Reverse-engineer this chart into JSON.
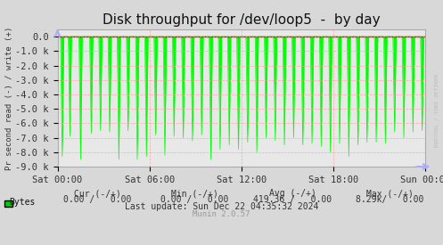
{
  "title": "Disk throughput for /dev/loop5  -  by day",
  "ylabel": "Pr second read (-) / write (+)",
  "background_color": "#d8d8d8",
  "plot_bg_color": "#e8e8e8",
  "grid_color": "#ff9999",
  "ylim": [
    -9000,
    500
  ],
  "yticks": [
    0,
    -1000,
    -2000,
    -3000,
    -4000,
    -5000,
    -6000,
    -7000,
    -8000,
    -9000
  ],
  "ytick_labels": [
    "0.0",
    "-1.0 k",
    "-2.0 k",
    "-3.0 k",
    "-4.0 k",
    "-5.0 k",
    "-6.0 k",
    "-7.0 k",
    "-8.0 k",
    "-9.0 k"
  ],
  "line_color": "#00ff00",
  "zero_line_color": "#cc0000",
  "border_color": "#aaaaaa",
  "xtick_labels": [
    "Sat 00:00",
    "Sat 06:00",
    "Sat 12:00",
    "Sat 18:00",
    "Sun 00:00"
  ],
  "legend_label": "Bytes",
  "legend_color": "#00cc00",
  "footer_cur": "Cur (-/+)   0.00 /   0.00",
  "footer_min": "Min (-/+)   0.00 /   0.00",
  "footer_avg": "Avg (-/+)   419.36 /   0.00",
  "footer_max": "Max (-/+)   8.29k/   0.00",
  "footer_last_update": "Last update: Sun Dec 22 04:35:32 2024",
  "footer_munin": "Munin 2.0.57",
  "watermark": "RRDTOOL / TOBI OETIKER",
  "title_fontsize": 11,
  "axis_fontsize": 7.5,
  "footer_fontsize": 7
}
